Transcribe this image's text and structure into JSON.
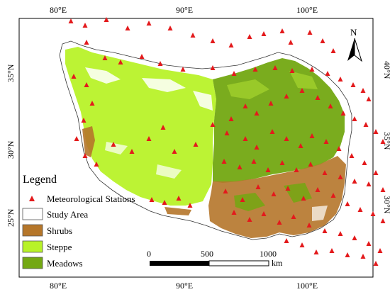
{
  "map": {
    "lon_ticks": [
      "80°E",
      "90°E",
      "100°E"
    ],
    "left_lat_ticks": [
      "35°N",
      "30°N",
      "25°N"
    ],
    "right_lat_ticks": [
      "40°N",
      "35°N",
      "30°N"
    ],
    "north_label": "N"
  },
  "legend": {
    "title": "Legend",
    "items": [
      {
        "label": "Meteorological Stations",
        "symbol": "triangle",
        "color": "#e31a1c"
      },
      {
        "label": "Study Area",
        "symbol": "box",
        "color": "#ffffff"
      },
      {
        "label": "Shrubs",
        "symbol": "box",
        "color": "#b5762a"
      },
      {
        "label": "Steppe",
        "symbol": "box",
        "color": "#b8f229"
      },
      {
        "label": "Meadows",
        "symbol": "box",
        "color": "#73a812"
      }
    ]
  },
  "scale_bar": {
    "ticks": [
      "0",
      "500",
      "1000"
    ],
    "unit": "km"
  },
  "colors": {
    "station": "#e31a1c",
    "shrubs": "#b5762a",
    "steppe": "#b8f229",
    "meadows": "#73a812",
    "frame": "#000000"
  }
}
